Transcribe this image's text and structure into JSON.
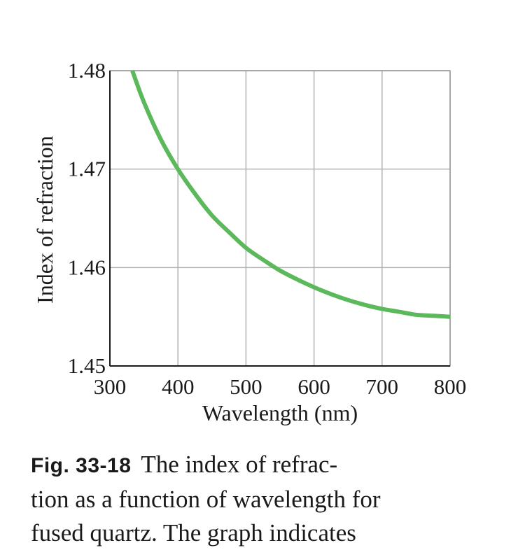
{
  "chart_data": {
    "type": "line",
    "xlabel": "Wavelength (nm)",
    "ylabel": "Index of refraction",
    "xlim": [
      300,
      800
    ],
    "ylim": [
      1.45,
      1.48
    ],
    "x_ticks": [
      "300",
      "400",
      "500",
      "600",
      "700",
      "800"
    ],
    "y_ticks": [
      "1.45",
      "1.46",
      "1.47",
      "1.48"
    ],
    "grid": true,
    "series": [
      {
        "color": "#5bb85b",
        "x": [
          333,
          350,
          375,
          400,
          425,
          450,
          475,
          500,
          525,
          550,
          575,
          600,
          625,
          650,
          675,
          700,
          725,
          750,
          775,
          800
        ],
        "y": [
          1.48,
          1.4768,
          1.473,
          1.47,
          1.4675,
          1.4653,
          1.4636,
          1.462,
          1.4608,
          1.4597,
          1.4588,
          1.458,
          1.4573,
          1.4567,
          1.4562,
          1.4558,
          1.4555,
          1.4552,
          1.4551,
          1.455
        ]
      }
    ]
  },
  "caption": {
    "label": "Fig. 33-18",
    "line1": "The index of refrac-",
    "line2": "tion as a function of wavelength for",
    "line3": "fused quartz. The graph indicates"
  }
}
